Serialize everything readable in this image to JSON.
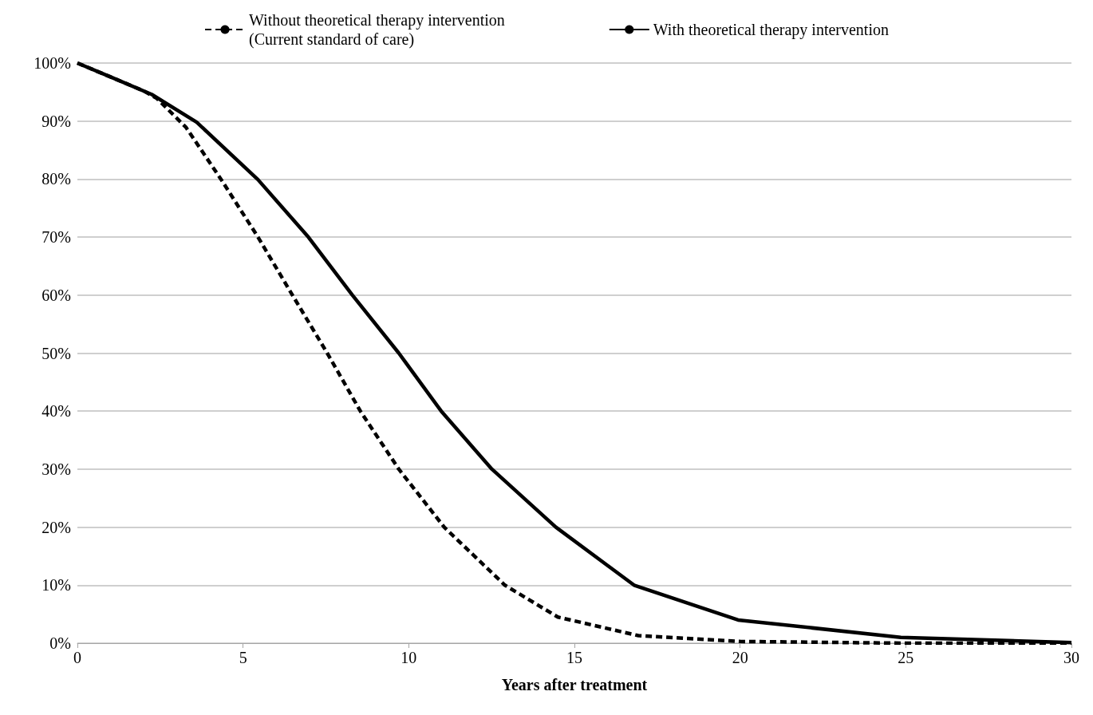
{
  "chart_data": {
    "type": "line",
    "xlabel": "Years after treatment",
    "xlim": [
      0,
      30
    ],
    "xticks": [
      0,
      5,
      10,
      15,
      20,
      25,
      30
    ],
    "ylim": [
      0,
      100
    ],
    "yticks": [
      {
        "value": 0,
        "label": "0%"
      },
      {
        "value": 10,
        "label": "10%"
      },
      {
        "value": 20,
        "label": "20%"
      },
      {
        "value": 30,
        "label": "30%"
      },
      {
        "value": 40,
        "label": "40%"
      },
      {
        "value": 50,
        "label": "50%"
      },
      {
        "value": 60,
        "label": "60%"
      },
      {
        "value": 70,
        "label": "70%"
      },
      {
        "value": 80,
        "label": "80%"
      },
      {
        "value": 90,
        "label": "90%"
      },
      {
        "value": 100,
        "label": "100%"
      }
    ],
    "grid": "y",
    "legend": "top",
    "marker": "none",
    "series": [
      {
        "name": "Without theoretical therapy intervention\n(Current standard of care)",
        "color": "#000000",
        "line_style": "dashed",
        "x": [
          0,
          1,
          2,
          2.4,
          3.28,
          4.33,
          5.45,
          6.49,
          7.54,
          8.54,
          9.7,
          11.07,
          12.9,
          14.5,
          16.93,
          20,
          25,
          30
        ],
        "values": [
          100,
          97.6,
          95.2,
          93.9,
          88.9,
          80,
          70,
          60,
          50,
          40,
          30,
          20,
          10,
          4.5,
          1.3,
          0.3,
          0,
          0
        ]
      },
      {
        "name": "With theoretical therapy intervention",
        "color": "#000000",
        "line_style": "solid",
        "x": [
          0,
          1,
          2.24,
          3.6,
          5.45,
          6.97,
          8.3,
          9.7,
          10.98,
          12.51,
          14.44,
          16.8,
          19.94,
          24.85,
          30
        ],
        "values": [
          100,
          97.6,
          94.6,
          89.8,
          79.9,
          70,
          60,
          50,
          40,
          30,
          20,
          10,
          4,
          1,
          0.1
        ]
      }
    ]
  }
}
